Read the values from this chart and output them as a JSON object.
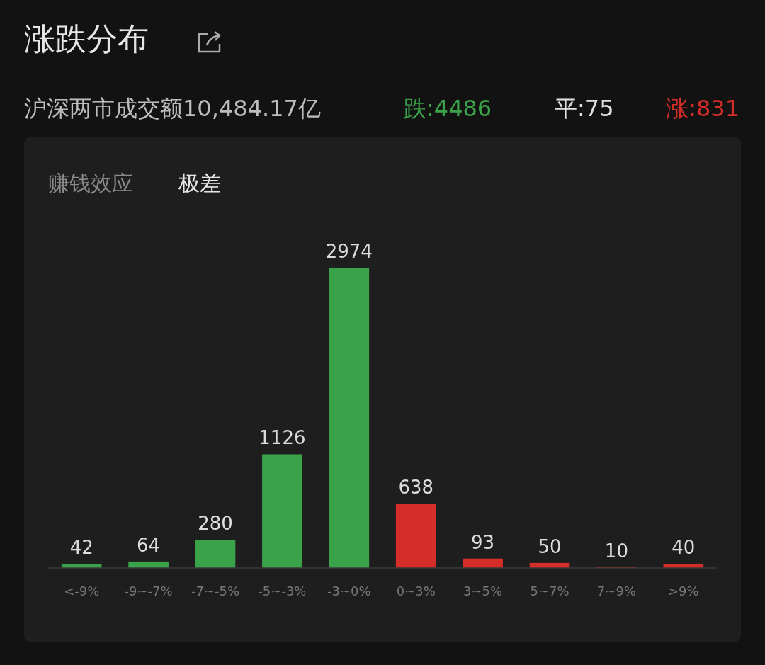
{
  "chart_data": {
    "type": "bar",
    "title": "涨跌分布",
    "subtitle": "沪深两市成交额10,484.17亿",
    "annotations": [
      "跌:4486",
      "平:75",
      "涨:831",
      "赚钱效应",
      "极差"
    ],
    "categories": [
      "<-9%",
      "-9~-7%",
      "-7~-5%",
      "-5~-3%",
      "-3~0%",
      "0~3%",
      "3~5%",
      "5~7%",
      "7~9%",
      ">9%"
    ],
    "values": [
      42,
      64,
      280,
      1126,
      2974,
      638,
      93,
      50,
      10,
      40
    ],
    "colors": [
      "#3aa34a",
      "#3aa34a",
      "#3aa34a",
      "#3aa34a",
      "#3aa34a",
      "#d42d2a",
      "#d42d2a",
      "#d42d2a",
      "#d42d2a",
      "#d42d2a"
    ],
    "data_labels": true
  }
}
